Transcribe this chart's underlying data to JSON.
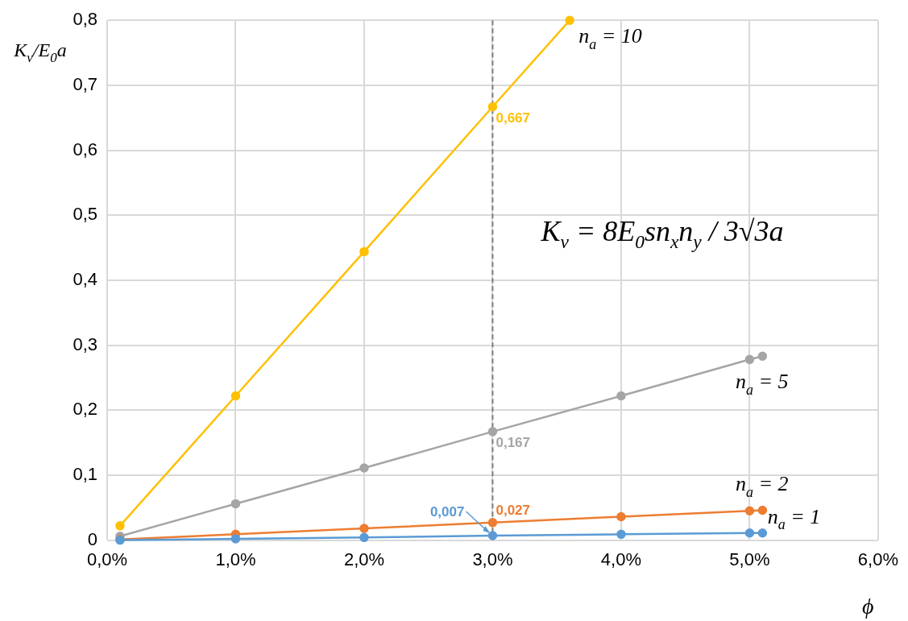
{
  "chart_data": {
    "type": "line",
    "xlabel": "ϕ",
    "ylabel": "K$_{v}$/E$_{0}$a",
    "series": [
      {
        "name": "n$_{a}$ = 1",
        "color": "#5b9bd5",
        "x": [
          0.1,
          1,
          2,
          3,
          4,
          5,
          5.1
        ],
        "values": [
          0,
          0.002,
          0.004,
          0.007,
          0.009,
          0.011,
          0.011
        ],
        "value_labels": [
          null,
          null,
          null,
          "0,007",
          null,
          null,
          null
        ]
      },
      {
        "name": "n$_{a}$ = 2",
        "color": "#ed7d31",
        "x": [
          0.1,
          1,
          2,
          3,
          4,
          5,
          5.1
        ],
        "values": [
          0.001,
          0.009,
          0.018,
          0.027,
          0.036,
          0.045,
          0.046
        ],
        "value_labels": [
          null,
          null,
          null,
          "0,027",
          null,
          null,
          null
        ]
      },
      {
        "name": "n$_{a}$ = 5",
        "color": "#a5a5a5",
        "x": [
          0.1,
          1,
          2,
          3,
          4,
          5,
          5.1
        ],
        "values": [
          0.006,
          0.056,
          0.111,
          0.167,
          0.222,
          0.278,
          0.283
        ],
        "value_labels": [
          null,
          null,
          null,
          "0,167",
          null,
          null,
          null
        ]
      },
      {
        "name": "n$_{a}$ = 10",
        "color": "#ffc000",
        "x": [
          0.1,
          1,
          2,
          3,
          3.6
        ],
        "values": [
          0.022,
          0.222,
          0.444,
          0.667,
          0.8
        ],
        "value_labels": [
          null,
          null,
          null,
          "0,667",
          null
        ]
      }
    ],
    "annotations": [
      "K$_{v}$ = 8E$_{0}$sn$_{x}$n$_{y}$ / 3√3a"
    ],
    "xlim": [
      0,
      6
    ],
    "xticks": [
      {
        "value": 0,
        "label": "0,0%"
      },
      {
        "value": 1,
        "label": "1,0%"
      },
      {
        "value": 2,
        "label": "2,0%"
      },
      {
        "value": 3,
        "label": "3,0%"
      },
      {
        "value": 4,
        "label": "4,0%"
      },
      {
        "value": 5,
        "label": "5,0%"
      },
      {
        "value": 6,
        "label": "6,0%"
      }
    ],
    "ylim": [
      0,
      0.8
    ],
    "yticks": [
      0,
      {
        "value": 0.1,
        "label": "0,1"
      },
      {
        "value": 0.2,
        "label": "0,2"
      },
      {
        "value": 0.3,
        "label": "0,3"
      },
      {
        "value": 0.4,
        "label": "0,4"
      },
      {
        "value": 0.5,
        "label": "0,5"
      },
      {
        "value": 0.6,
        "label": "0,6"
      },
      {
        "value": 0.7,
        "label": "0,7"
      },
      {
        "value": 0.8,
        "label": "0,8"
      }
    ],
    "ref_lines": [
      {
        "axis": "x",
        "value": 3,
        "color": "#7f7f7f",
        "line_style": "dashed"
      }
    ],
    "grid": true,
    "legend": false,
    "marker": "circle",
    "line_style": "solid"
  }
}
